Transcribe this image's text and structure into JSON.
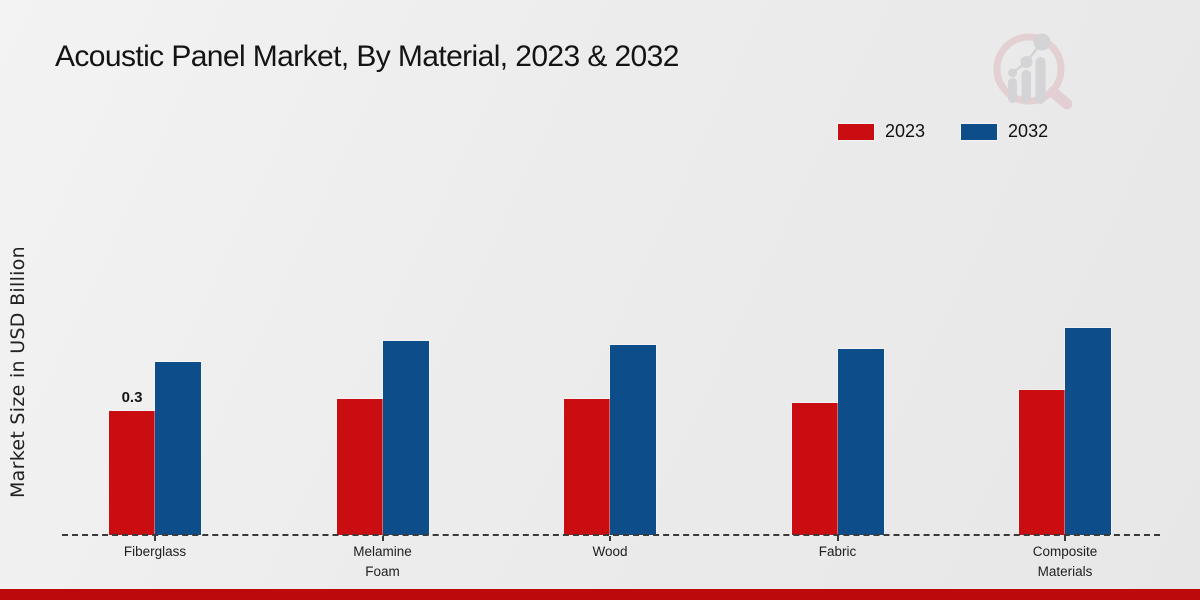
{
  "chart": {
    "title": "Acoustic Panel Market, By Material, 2023 & 2032",
    "ylabel": "Market Size in USD Billion"
  },
  "legend": {
    "items": [
      {
        "label": "2023",
        "color": "#c90d10"
      },
      {
        "label": "2032",
        "color": "#0c4d8a"
      }
    ]
  },
  "chart_data": {
    "type": "bar",
    "title": "Acoustic Panel Market, By Material, 2023 & 2032",
    "xlabel": "",
    "ylabel": "Market Size in USD Billion",
    "categories": [
      "Fiberglass",
      "Melamine Foam",
      "Wood",
      "Fabric",
      "Composite Materials"
    ],
    "series": [
      {
        "name": "2023",
        "color": "#c90d10",
        "values": [
          0.3,
          0.33,
          0.33,
          0.32,
          0.35
        ]
      },
      {
        "name": "2032",
        "color": "#0c4d8a",
        "values": [
          0.42,
          0.47,
          0.46,
          0.45,
          0.5
        ]
      }
    ],
    "ylim": [
      0,
      0.55
    ],
    "grid": false,
    "y_axis_ticks_visible": false,
    "baseline_style": "dashed",
    "legend_position": "top-right",
    "annotations": [
      {
        "category": "Fiberglass",
        "series": "2023",
        "text": "0.3"
      }
    ]
  },
  "footer": {
    "bar_color": "#bb090c"
  },
  "watermark": {
    "icon": "magnifier-bar-chart-logo",
    "ring_color": "#e0bfc5",
    "glyph_color": "#c7c7cb"
  }
}
